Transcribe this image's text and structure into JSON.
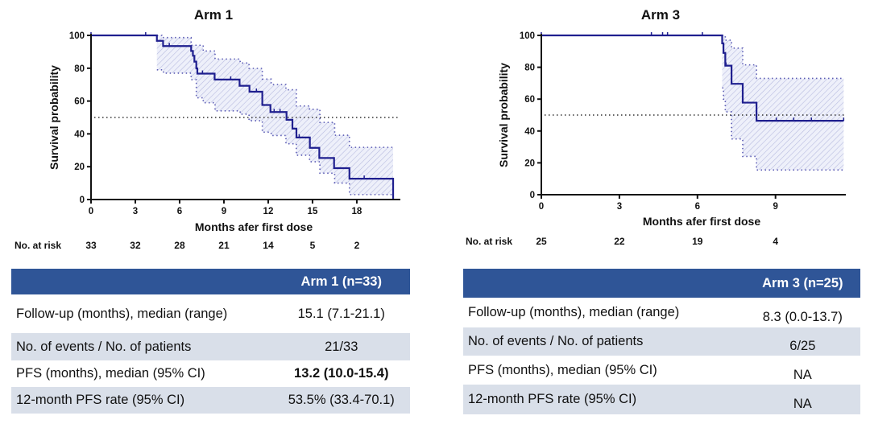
{
  "chart_data": [
    {
      "type": "line",
      "subtype": "kaplan-meier",
      "title": "Arm 1",
      "xlabel": "Months afer first dose",
      "ylabel": "Survival probability",
      "xlim": [
        0,
        20.5
      ],
      "ylim": [
        0,
        100
      ],
      "xticks": [
        "0",
        "3",
        "6",
        "9",
        "12",
        "15",
        "18"
      ],
      "yticks": [
        "0",
        "20",
        "40",
        "60",
        "80",
        "100"
      ],
      "median_reference_line": 50,
      "survival_steps": [
        [
          0,
          100
        ],
        [
          4.46,
          96.7
        ],
        [
          4.88,
          93.5
        ],
        [
          6.78,
          90.5
        ],
        [
          6.9,
          87.6
        ],
        [
          7.0,
          84.0
        ],
        [
          7.13,
          79.9
        ],
        [
          7.2,
          76.7
        ],
        [
          8.37,
          73.1
        ],
        [
          10.06,
          69.3
        ],
        [
          10.73,
          65.7
        ],
        [
          11.6,
          57.6
        ],
        [
          12.15,
          53.3
        ],
        [
          13.24,
          48.6
        ],
        [
          13.64,
          43.2
        ],
        [
          13.91,
          37.8
        ],
        [
          14.82,
          31.5
        ],
        [
          15.46,
          25.3
        ],
        [
          16.46,
          19.1
        ],
        [
          17.5,
          12.7
        ],
        [
          20.46,
          0
        ]
      ],
      "censored_times": [
        0,
        3.7,
        5.3,
        7.55,
        9.46,
        11.2,
        12.4,
        12.8,
        14.1,
        18.5
      ],
      "ci_upper": [
        [
          4.46,
          100
        ],
        [
          4.8,
          98.7
        ],
        [
          6.78,
          94
        ],
        [
          7.6,
          90.5
        ],
        [
          8.4,
          85.6
        ],
        [
          10.1,
          83.2
        ],
        [
          10.7,
          79.9
        ],
        [
          11.6,
          73.4
        ],
        [
          12.2,
          70.1
        ],
        [
          13.2,
          66.9
        ],
        [
          13.9,
          57
        ],
        [
          14.8,
          55
        ],
        [
          15.5,
          47
        ],
        [
          16.5,
          39.2
        ],
        [
          17.5,
          31.8
        ],
        [
          20.46,
          31.8
        ]
      ],
      "ci_lower": [
        [
          4.46,
          79
        ],
        [
          4.9,
          77
        ],
        [
          6.78,
          73
        ],
        [
          7.13,
          62
        ],
        [
          7.6,
          59
        ],
        [
          8.4,
          54
        ],
        [
          10.1,
          52
        ],
        [
          10.7,
          48
        ],
        [
          11.6,
          41
        ],
        [
          12.2,
          39
        ],
        [
          13.2,
          34
        ],
        [
          13.9,
          27
        ],
        [
          14.8,
          23
        ],
        [
          15.5,
          16
        ],
        [
          16.5,
          10
        ],
        [
          17.5,
          3
        ],
        [
          20.46,
          3
        ]
      ],
      "number_at_risk_label": "No. at risk",
      "number_at_risk": [
        [
          "0",
          "33"
        ],
        [
          "3",
          "32"
        ],
        [
          "6",
          "28"
        ],
        [
          "9",
          "21"
        ],
        [
          "12",
          "14"
        ],
        [
          "15",
          "5"
        ],
        [
          "18",
          "2"
        ]
      ],
      "line_color": "#1f1f8f",
      "ci_color": "#5a5ab4"
    },
    {
      "type": "line",
      "subtype": "kaplan-meier",
      "title": "Arm 3",
      "xlabel": "Months afer first dose",
      "ylabel": "Survival probability",
      "xlim": [
        0,
        11.7
      ],
      "ylim": [
        0,
        100
      ],
      "xticks": [
        "0",
        "3",
        "6",
        "9"
      ],
      "yticks": [
        "0",
        "20",
        "40",
        "60",
        "80",
        "100"
      ],
      "median_reference_line": 50,
      "survival_steps": [
        [
          0,
          100
        ],
        [
          6.95,
          95
        ],
        [
          7.0,
          89
        ],
        [
          7.07,
          81
        ],
        [
          7.31,
          69.6
        ],
        [
          7.74,
          57.8
        ],
        [
          8.27,
          46.4
        ],
        [
          11.62,
          46.4
        ]
      ],
      "censored_times": [
        0,
        4.23,
        4.66,
        4.85,
        6.19,
        7.1,
        9.03,
        9.7,
        10.38,
        11.62
      ],
      "ci_upper": [
        [
          6.95,
          100
        ],
        [
          7.07,
          97
        ],
        [
          7.31,
          92
        ],
        [
          7.74,
          81.5
        ],
        [
          8.27,
          73
        ],
        [
          11.62,
          73
        ]
      ],
      "ci_lower": [
        [
          6.95,
          67
        ],
        [
          7.0,
          60
        ],
        [
          7.07,
          52
        ],
        [
          7.31,
          35
        ],
        [
          7.74,
          24
        ],
        [
          8.27,
          15.5
        ],
        [
          11.62,
          15.5
        ]
      ],
      "number_at_risk_label": "No. at risk",
      "number_at_risk": [
        [
          "0",
          "25"
        ],
        [
          "3",
          "22"
        ],
        [
          "6",
          "19"
        ],
        [
          "9",
          "4"
        ]
      ],
      "line_color": "#1f1f8f",
      "ci_color": "#5a5ab4"
    }
  ],
  "tables": [
    {
      "header": "Arm 1 (n=33)",
      "rows": [
        {
          "label": "Follow-up (months), median (range)",
          "value": "15.1 (7.1-21.1)"
        },
        {
          "label": "No. of events / No. of patients",
          "value": "21/33"
        },
        {
          "label": "PFS (months), median (95% CI)",
          "value": "13.2 (10.0-15.4)"
        },
        {
          "label": "12-month PFS rate (95% CI)",
          "value": "53.5% (33.4-70.1)"
        }
      ]
    },
    {
      "header": "Arm 3 (n=25)",
      "rows": [
        {
          "label": "Follow-up (months), median (range)",
          "value": "8.3 (0.0-13.7)"
        },
        {
          "label": "No. of events / No. of patients",
          "value": "6/25"
        },
        {
          "label": "PFS (months), median (95% CI)",
          "value": "NA"
        },
        {
          "label": "12-month PFS rate (95% CI)",
          "value": "NA"
        }
      ]
    }
  ],
  "colors": {
    "table_header": "#2f5597",
    "table_stripe": "#d9dfe9"
  }
}
